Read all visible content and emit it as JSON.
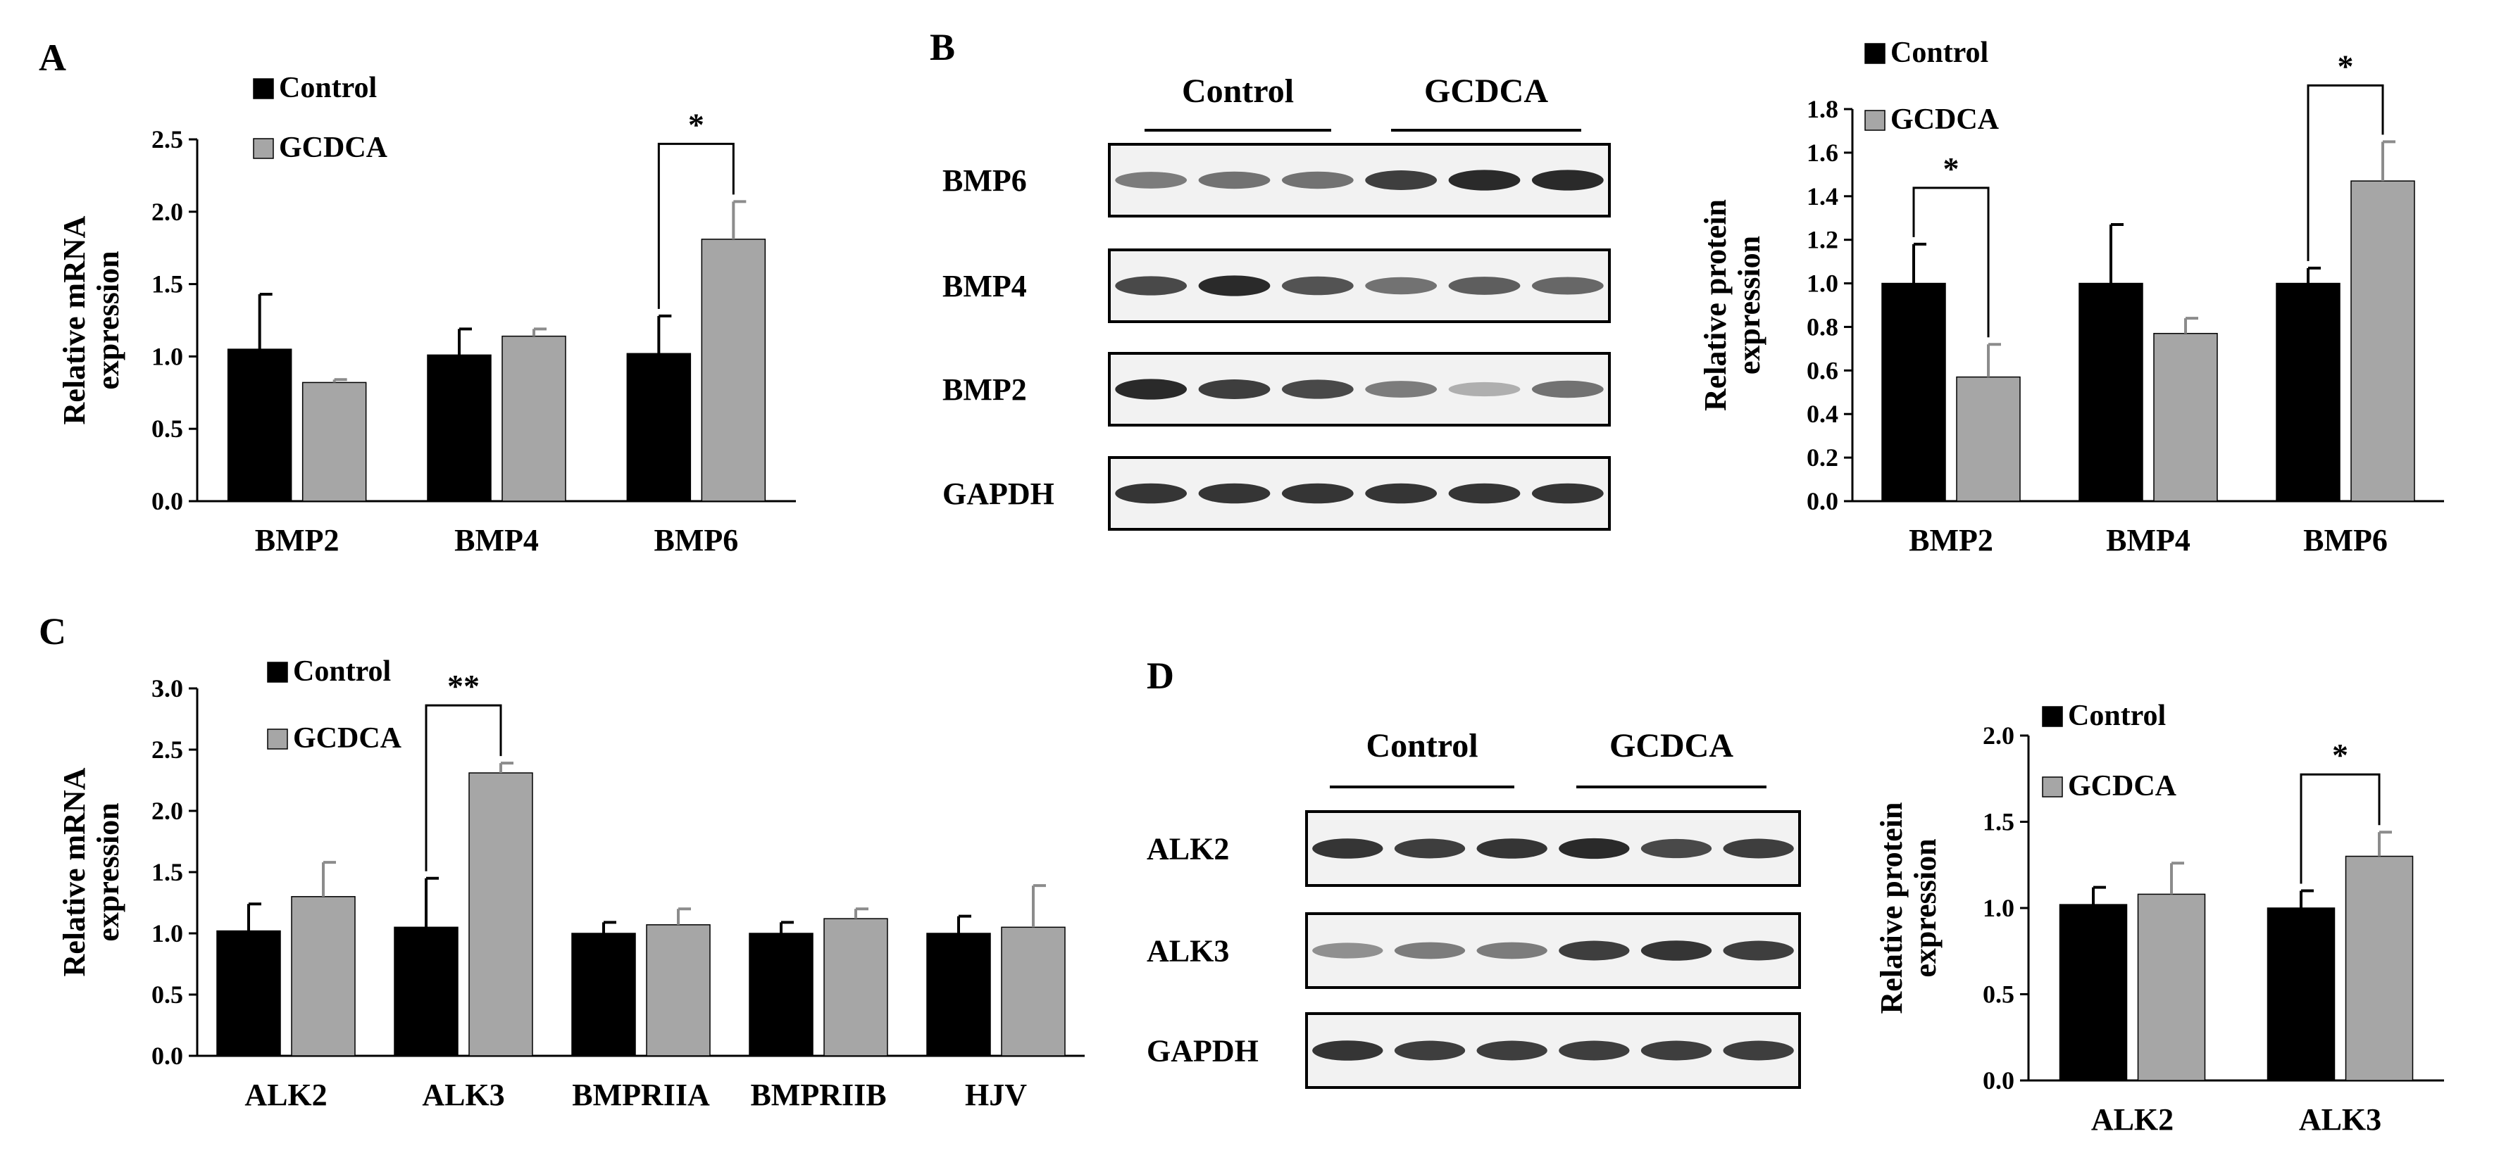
{
  "colors": {
    "control": "#000000",
    "gcdca": "#a6a6a6",
    "blot_bg": "#f2f2f2",
    "band": "#1a1a1a"
  },
  "panels": {
    "A": {
      "label": "A"
    },
    "B": {
      "label": "B"
    },
    "C": {
      "label": "C"
    },
    "D": {
      "label": "D"
    }
  },
  "blots": [
    {
      "id": "B",
      "groups": [
        "Control",
        "GCDCA"
      ],
      "rows": [
        {
          "label": "BMP6",
          "intensities": [
            0.55,
            0.6,
            0.6,
            0.85,
            0.95,
            0.95
          ]
        },
        {
          "label": "BMP4",
          "intensities": [
            0.8,
            0.95,
            0.75,
            0.6,
            0.7,
            0.65
          ]
        },
        {
          "label": "BMP2",
          "intensities": [
            0.95,
            0.85,
            0.8,
            0.55,
            0.3,
            0.6
          ]
        },
        {
          "label": "GAPDH",
          "intensities": [
            0.9,
            0.9,
            0.9,
            0.9,
            0.9,
            0.9
          ]
        }
      ]
    },
    {
      "id": "D",
      "groups": [
        "Control",
        "GCDCA"
      ],
      "rows": [
        {
          "label": "ALK2",
          "intensities": [
            0.9,
            0.85,
            0.9,
            0.95,
            0.8,
            0.85
          ]
        },
        {
          "label": "ALK3",
          "intensities": [
            0.45,
            0.55,
            0.55,
            0.85,
            0.9,
            0.85
          ]
        },
        {
          "label": "GAPDH",
          "intensities": [
            0.9,
            0.85,
            0.85,
            0.85,
            0.85,
            0.85
          ]
        }
      ]
    }
  ],
  "chart_data": [
    {
      "id": "A",
      "type": "bar",
      "categories": [
        "BMP2",
        "BMP4",
        "BMP6"
      ],
      "series": [
        {
          "name": "Control",
          "values": [
            1.05,
            1.01,
            1.02
          ],
          "errors": [
            0.38,
            0.18,
            0.26
          ]
        },
        {
          "name": "GCDCA",
          "values": [
            0.82,
            1.14,
            1.81
          ],
          "errors": [
            0.02,
            0.05,
            0.26
          ]
        }
      ],
      "ylabel": [
        "Relative mRNA",
        "expression"
      ],
      "ylim": [
        0,
        2.5
      ],
      "yticks": [
        0.0,
        0.5,
        1.0,
        1.5,
        2.0,
        2.5
      ],
      "ytick_labels": [
        "0.0",
        "0.5",
        "1.0",
        "1.5",
        "2.0",
        "2.5"
      ],
      "legend": "top-left",
      "annotations": [
        {
          "category": 2,
          "text": "*"
        }
      ]
    },
    {
      "id": "B",
      "type": "bar",
      "categories": [
        "BMP2",
        "BMP4",
        "BMP6"
      ],
      "series": [
        {
          "name": "Control",
          "values": [
            1.0,
            1.0,
            1.0
          ],
          "errors": [
            0.18,
            0.27,
            0.07
          ]
        },
        {
          "name": "GCDCA",
          "values": [
            0.57,
            0.77,
            1.47
          ],
          "errors": [
            0.15,
            0.07,
            0.18
          ]
        }
      ],
      "ylabel": [
        "Relative protein",
        "expression"
      ],
      "ylim": [
        0,
        1.8
      ],
      "yticks": [
        0,
        0.2,
        0.4,
        0.6,
        0.8,
        1.0,
        1.2,
        1.4,
        1.6,
        1.8
      ],
      "ytick_labels": [
        "0.0",
        "0.2",
        "0.4",
        "0.6",
        "0.8",
        "1.0",
        "1.2",
        "1.4",
        "1.6",
        "1.8"
      ],
      "legend": "top-left",
      "annotations": [
        {
          "category": 0,
          "text": "*"
        },
        {
          "category": 2,
          "text": "*"
        }
      ]
    },
    {
      "id": "C",
      "type": "bar",
      "categories": [
        "ALK2",
        "ALK3",
        "BMPRIIA",
        "BMPRIIB",
        "HJV"
      ],
      "series": [
        {
          "name": "Control",
          "values": [
            1.02,
            1.05,
            1.0,
            1.0,
            1.0
          ],
          "errors": [
            0.22,
            0.4,
            0.09,
            0.09,
            0.14
          ]
        },
        {
          "name": "GCDCA",
          "values": [
            1.3,
            2.31,
            1.07,
            1.12,
            1.05
          ],
          "errors": [
            0.28,
            0.08,
            0.13,
            0.08,
            0.34
          ]
        }
      ],
      "ylabel": [
        "Relative mRNA",
        "expression"
      ],
      "ylim": [
        0,
        3.0
      ],
      "yticks": [
        0.0,
        0.5,
        1.0,
        1.5,
        2.0,
        2.5,
        3.0
      ],
      "ytick_labels": [
        "0.0",
        "0.5",
        "1.0",
        "1.5",
        "2.0",
        "2.5",
        "3.0"
      ],
      "legend": "top-left",
      "annotations": [
        {
          "category": 1,
          "text": "**"
        }
      ]
    },
    {
      "id": "D",
      "type": "bar",
      "categories": [
        "ALK2",
        "ALK3"
      ],
      "series": [
        {
          "name": "Control",
          "values": [
            1.02,
            1.0
          ],
          "errors": [
            0.1,
            0.1
          ]
        },
        {
          "name": "GCDCA",
          "values": [
            1.08,
            1.3
          ],
          "errors": [
            0.18,
            0.14
          ]
        }
      ],
      "ylabel": [
        "Relative protein",
        "expression"
      ],
      "ylim": [
        0,
        2.0
      ],
      "yticks": [
        0.0,
        0.5,
        1.0,
        1.5,
        2.0
      ],
      "ytick_labels": [
        "0.0",
        "0.5",
        "1.0",
        "1.5",
        "2.0"
      ],
      "legend": "top-left",
      "annotations": [
        {
          "category": 1,
          "text": "*"
        }
      ]
    }
  ]
}
